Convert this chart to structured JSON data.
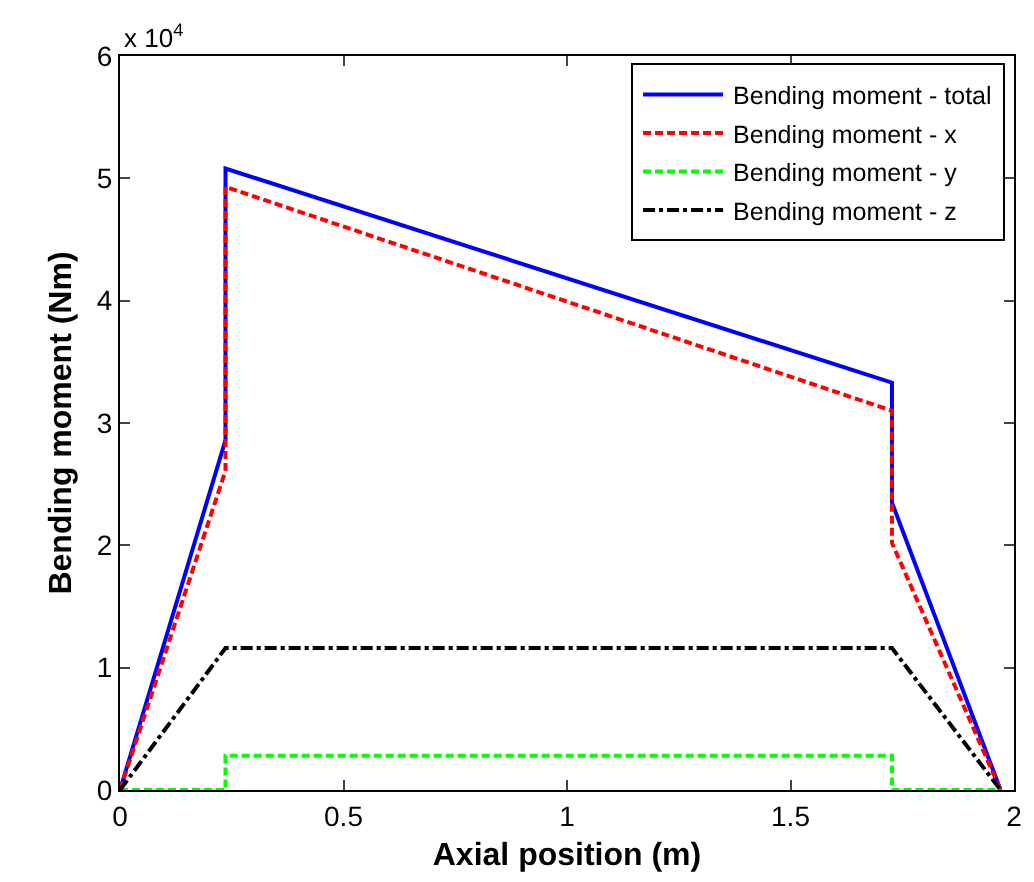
{
  "chart_data": {
    "type": "line",
    "xlabel": "Axial position (m)",
    "ylabel": "Bending moment (Nm)",
    "xlim": [
      0,
      2
    ],
    "xticks": [
      0,
      0.5,
      1,
      1.5,
      2
    ],
    "ylim": [
      0,
      6
    ],
    "yticks": [
      0,
      1,
      2,
      3,
      4,
      5,
      6
    ],
    "annotations": [
      "x 10$^{4}$"
    ],
    "legend": "top right",
    "marker": "none",
    "series": [
      {
        "name": "Bending moment - total",
        "color": "#0000ff",
        "line_style": "solid",
        "x": [
          0,
          0.236,
          0.236,
          1.727,
          1.727,
          1.97
        ],
        "values": [
          0,
          2.86,
          5.08,
          3.33,
          2.35,
          0
        ]
      },
      {
        "name": "Bending moment - x",
        "color": "#ff0000",
        "line_style": "dashed",
        "x": [
          0,
          0.236,
          0.236,
          1.727,
          1.727,
          1.97
        ],
        "values": [
          0,
          2.61,
          4.93,
          3.1,
          2.02,
          0
        ]
      },
      {
        "name": "Bending moment - y",
        "color": "#00ff00",
        "line_style": "dashed",
        "x": [
          0,
          0.236,
          0.236,
          1.727,
          1.727,
          1.97
        ],
        "values": [
          0,
          0,
          0.28,
          0.28,
          0,
          0
        ]
      },
      {
        "name": "Bending moment - z",
        "color": "#000000",
        "line_style": "dashdot",
        "x": [
          0,
          0.236,
          1.727,
          1.97
        ],
        "values": [
          0,
          1.16,
          1.16,
          0
        ]
      }
    ]
  }
}
